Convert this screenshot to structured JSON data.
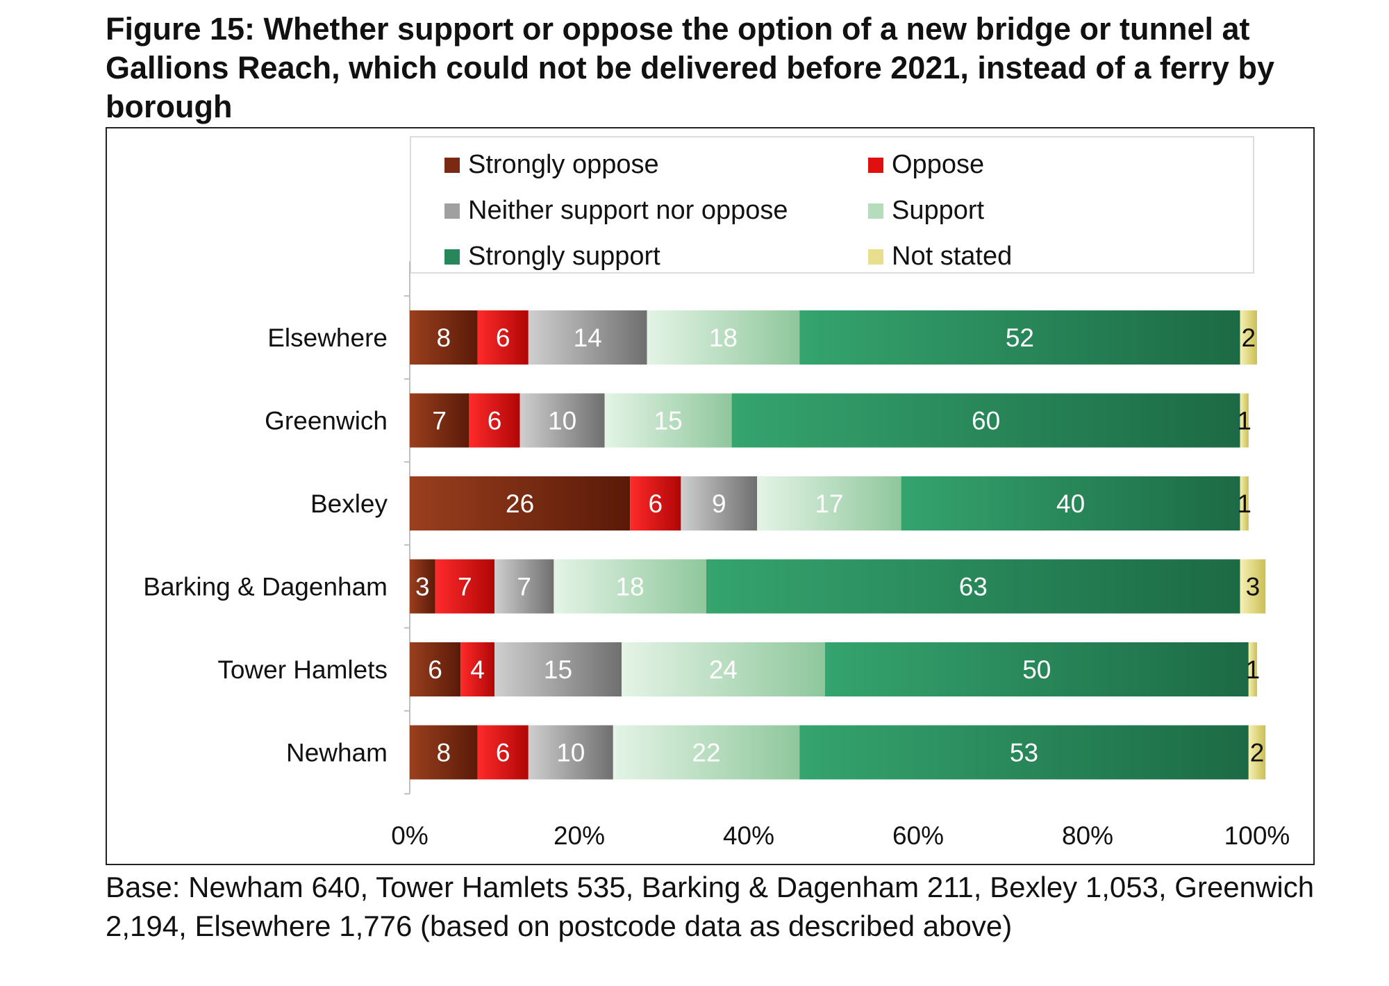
{
  "title": "Figure 15: Whether support or oppose the option of a new bridge or tunnel at Gallions Reach, which could not be delivered before 2021, instead of a ferry by borough",
  "caption": "Base: Newham 640, Tower Hamlets 535, Barking & Dagenham 211, Bexley 1,053, Greenwich 2,194, Elsewhere 1,776 (based on postcode data as described above)",
  "legend": [
    {
      "label": "Strongly oppose",
      "color": "#7a2a12"
    },
    {
      "label": "Oppose",
      "color": "#e01010"
    },
    {
      "label": "Neither support nor oppose",
      "color": "#a0a0a0"
    },
    {
      "label": "Support",
      "color": "#b5dcbc"
    },
    {
      "label": "Strongly support",
      "color": "#27875a"
    },
    {
      "label": "Not stated",
      "color": "#e8df8e"
    }
  ],
  "chart_data": {
    "type": "bar",
    "orientation": "horizontal",
    "stacked": true,
    "title": "Figure 15: Whether support or oppose the option of a new bridge or tunnel at Gallions Reach, which could not be delivered before 2021, instead of a ferry by borough",
    "xlabel": "",
    "ylabel": "",
    "xlim": [
      0,
      100
    ],
    "x_ticks": [
      "0%",
      "20%",
      "40%",
      "60%",
      "80%",
      "100%"
    ],
    "legend_position": "top",
    "categories": [
      "Elsewhere",
      "Greenwich",
      "Bexley",
      "Barking & Dagenham",
      "Tower Hamlets",
      "Newham"
    ],
    "series": [
      {
        "name": "Strongly oppose",
        "values": [
          8,
          7,
          26,
          3,
          6,
          8
        ]
      },
      {
        "name": "Oppose",
        "values": [
          6,
          6,
          6,
          7,
          4,
          6
        ]
      },
      {
        "name": "Neither support nor oppose",
        "values": [
          14,
          10,
          9,
          7,
          15,
          10
        ]
      },
      {
        "name": "Support",
        "values": [
          18,
          15,
          17,
          18,
          24,
          22
        ]
      },
      {
        "name": "Strongly support",
        "values": [
          52,
          60,
          40,
          63,
          50,
          53
        ]
      },
      {
        "name": "Not stated",
        "values": [
          2,
          1,
          1,
          3,
          1,
          2
        ]
      }
    ]
  }
}
